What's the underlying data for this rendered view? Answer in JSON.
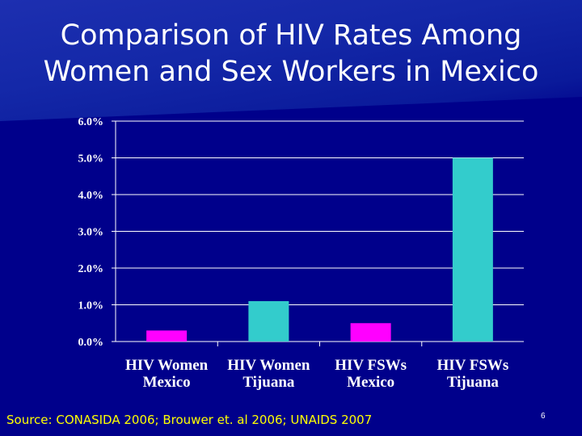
{
  "slide": {
    "title_line1": "Comparison of HIV Rates Among",
    "title_line2": "Women and Sex Workers in Mexico",
    "source": "Source: CONASIDA 2006; Brouwer et. al 2006; UNAIDS 2007",
    "slide_number": "6"
  },
  "colors": {
    "background": "#00008b",
    "gridline": "#ffffff",
    "bar_magenta": "#ff00ff",
    "bar_teal": "#33cccc",
    "source_text": "#ffff00"
  },
  "chart_data": {
    "type": "bar",
    "categories": [
      [
        "HIV Women",
        "Mexico"
      ],
      [
        "HIV Women",
        "Tijuana"
      ],
      [
        "HIV FSWs",
        "Mexico"
      ],
      [
        "HIV FSWs",
        "Tijuana"
      ]
    ],
    "values": [
      0.3,
      1.1,
      0.5,
      5.0
    ],
    "bar_colors": [
      "#ff00ff",
      "#33cccc",
      "#ff00ff",
      "#33cccc"
    ],
    "ylim": [
      0,
      6
    ],
    "y_ticks": [
      0,
      1,
      2,
      3,
      4,
      5,
      6
    ],
    "y_tick_labels": [
      "0.0%",
      "1.0%",
      "2.0%",
      "3.0%",
      "4.0%",
      "5.0%",
      "6.0%"
    ],
    "grid": true,
    "title": "",
    "xlabel": "",
    "ylabel": ""
  }
}
